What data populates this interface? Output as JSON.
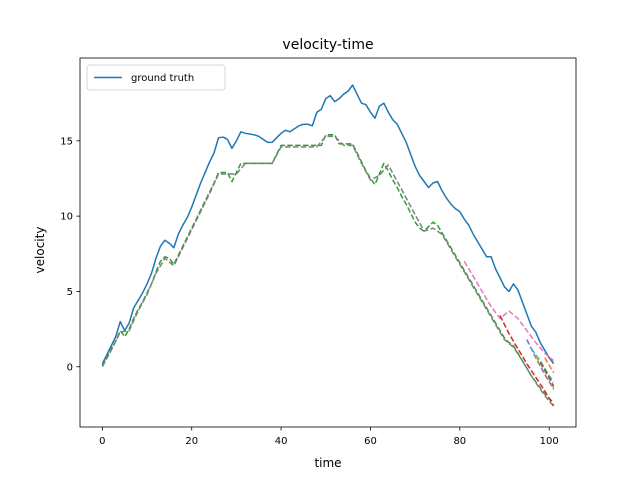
{
  "chart_data": {
    "type": "line",
    "title": "velocity-time",
    "xlabel": "time",
    "ylabel": "velocity",
    "xlim": [
      -5,
      106
    ],
    "ylim": [
      -4,
      20.5
    ],
    "xticks": [
      0,
      20,
      40,
      60,
      80,
      100
    ],
    "yticks": [
      0,
      5,
      10,
      15
    ],
    "grid": false,
    "legend": {
      "placement": "top-left",
      "entries": [
        "ground truth"
      ]
    },
    "series": [
      {
        "name": "ground truth",
        "color": "#1f77b4",
        "style": "solid",
        "x": [
          0,
          1,
          2,
          3,
          4,
          5,
          6,
          7,
          8,
          9,
          10,
          11,
          12,
          13,
          14,
          15,
          16,
          17,
          18,
          19,
          20,
          21,
          22,
          23,
          24,
          25,
          26,
          27,
          28,
          29,
          30,
          31,
          32,
          33,
          34,
          35,
          36,
          37,
          38,
          39,
          40,
          41,
          42,
          43,
          44,
          45,
          46,
          47,
          48,
          49,
          50,
          51,
          52,
          53,
          54,
          55,
          56,
          57,
          58,
          59,
          60,
          61,
          62,
          63,
          64,
          65,
          66,
          67,
          68,
          69,
          70,
          71,
          72,
          73,
          74,
          75,
          76,
          77,
          78,
          79,
          80,
          81,
          82,
          83,
          84,
          85,
          86,
          87,
          88,
          89,
          90,
          91,
          92,
          93,
          94,
          95,
          96,
          97,
          98,
          99,
          100,
          101
        ],
        "y": [
          0.2,
          0.8,
          1.4,
          2.0,
          3.0,
          2.4,
          2.9,
          3.9,
          4.4,
          4.9,
          5.5,
          6.2,
          7.2,
          8.0,
          8.4,
          8.2,
          7.9,
          8.8,
          9.4,
          9.9,
          10.6,
          11.4,
          12.2,
          12.9,
          13.6,
          14.2,
          15.2,
          15.25,
          15.1,
          14.5,
          15.0,
          15.6,
          15.5,
          15.45,
          15.4,
          15.3,
          15.1,
          14.9,
          14.9,
          15.2,
          15.5,
          15.7,
          15.6,
          15.8,
          16.0,
          16.1,
          16.1,
          16.0,
          16.9,
          17.1,
          17.8,
          18.0,
          17.6,
          17.8,
          18.1,
          18.3,
          18.7,
          18.1,
          17.5,
          17.4,
          16.9,
          16.5,
          17.3,
          17.5,
          16.9,
          16.4,
          16.1,
          15.5,
          14.9,
          14.1,
          13.3,
          12.7,
          12.3,
          11.9,
          12.2,
          12.3,
          11.7,
          11.2,
          10.8,
          10.5,
          10.3,
          9.8,
          9.4,
          8.8,
          8.3,
          7.8,
          7.3,
          7.3,
          6.5,
          5.9,
          5.3,
          5.0,
          5.5,
          5.1,
          4.3,
          3.5,
          2.7,
          2.3,
          1.6,
          1.1,
          0.6,
          0.2
        ]
      },
      {
        "color": "#2ca02c",
        "style": "dashed",
        "x": [
          0,
          1,
          2,
          3,
          4,
          5,
          6,
          7,
          8,
          9,
          10,
          11,
          12,
          13,
          14,
          15,
          16,
          17,
          18,
          19,
          20,
          21,
          22,
          23,
          24,
          25,
          26,
          27,
          28,
          29,
          30,
          31,
          32,
          33,
          34,
          35,
          36,
          37,
          38,
          39,
          40,
          41,
          42,
          43,
          44,
          45,
          46,
          47,
          48,
          49,
          50,
          51,
          52,
          53,
          54,
          55,
          56,
          57,
          58,
          59,
          60,
          61,
          62,
          63,
          64,
          65,
          66,
          67,
          68,
          69,
          70,
          71,
          72,
          73,
          74,
          75,
          76,
          77,
          78,
          79,
          80,
          81,
          82,
          83,
          84,
          85,
          86,
          87,
          88,
          89,
          90,
          91,
          92,
          93,
          94,
          95,
          96,
          97,
          98,
          99,
          100,
          101
        ],
        "y": [
          0.1,
          0.6,
          1.2,
          1.7,
          2.4,
          2.0,
          2.5,
          3.2,
          3.8,
          4.3,
          4.9,
          5.5,
          6.3,
          7.0,
          7.3,
          7.2,
          6.8,
          7.4,
          8.0,
          8.6,
          9.2,
          9.8,
          10.4,
          11.0,
          11.6,
          12.2,
          12.9,
          12.9,
          12.9,
          12.3,
          12.9,
          13.5,
          13.5,
          13.5,
          13.5,
          13.5,
          13.5,
          13.5,
          13.5,
          14.1,
          14.7,
          14.7,
          14.7,
          14.7,
          14.7,
          14.7,
          14.7,
          14.7,
          14.7,
          14.7,
          15.4,
          15.4,
          15.4,
          14.8,
          14.8,
          14.8,
          14.8,
          14.2,
          13.6,
          13.0,
          12.5,
          12.1,
          12.8,
          13.5,
          13.0,
          12.4,
          11.9,
          11.3,
          10.8,
          10.2,
          9.6,
          9.2,
          9.0,
          9.3,
          9.6,
          9.4,
          8.9,
          8.4,
          7.9,
          7.4,
          6.9,
          6.4,
          5.9,
          5.4,
          4.9,
          4.4,
          3.9,
          3.4,
          2.9,
          2.4,
          1.9,
          1.6,
          1.4,
          0.9,
          0.4,
          -0.1,
          -0.6,
          -1.0,
          -1.4,
          -1.8,
          -2.1,
          -2.4
        ]
      },
      {
        "color": "#7f7f7f",
        "style": "dashed",
        "x": [
          0,
          2,
          4,
          6,
          8,
          10,
          12,
          14,
          16,
          18,
          20,
          22,
          24,
          26,
          28,
          30,
          32,
          34,
          36,
          38,
          40,
          42,
          44,
          46,
          48,
          50,
          52,
          54,
          56,
          58,
          60,
          62,
          64,
          66,
          68,
          70,
          72,
          74,
          76,
          78,
          80,
          82,
          84,
          86,
          88,
          90,
          92,
          94,
          96,
          98,
          100,
          101
        ],
        "y": [
          0.0,
          1.1,
          2.3,
          2.4,
          3.7,
          4.8,
          6.2,
          7.2,
          6.7,
          7.9,
          9.1,
          10.3,
          11.5,
          12.8,
          12.8,
          12.8,
          13.5,
          13.5,
          13.5,
          13.5,
          14.6,
          14.6,
          14.6,
          14.6,
          14.6,
          15.3,
          15.3,
          14.7,
          14.7,
          13.5,
          12.4,
          12.7,
          13.4,
          12.3,
          11.2,
          10.1,
          9.0,
          9.2,
          8.8,
          7.8,
          6.8,
          5.8,
          4.8,
          3.8,
          2.8,
          1.8,
          1.3,
          0.4,
          -0.6,
          -1.5,
          -2.3,
          -2.6
        ]
      },
      {
        "color": "#e377c2",
        "style": "dashed",
        "x": [
          81,
          83,
          85,
          87,
          89,
          91,
          93,
          95,
          97,
          99,
          101
        ],
        "y": [
          7.0,
          6.0,
          5.0,
          4.0,
          3.2,
          3.7,
          3.2,
          2.4,
          1.6,
          0.9,
          0.4
        ]
      },
      {
        "color": "#d62728",
        "style": "dashed",
        "x": [
          89,
          91,
          93,
          95,
          97,
          99,
          101
        ],
        "y": [
          3.4,
          2.2,
          1.2,
          0.2,
          -0.7,
          -1.6,
          -2.6
        ]
      },
      {
        "color": "#9467bd",
        "style": "dashed",
        "x": [
          95,
          97,
          99,
          101
        ],
        "y": [
          1.8,
          0.6,
          -0.5,
          -1.5
        ]
      },
      {
        "color": "#17becf",
        "style": "dashed",
        "x": [
          96,
          98,
          100,
          101
        ],
        "y": [
          1.2,
          0.4,
          -0.6,
          -1.0
        ]
      },
      {
        "color": "#bcbd22",
        "style": "dashed",
        "x": [
          97,
          99,
          101
        ],
        "y": [
          0.7,
          -0.3,
          -1.4
        ]
      },
      {
        "color": "#8c564b",
        "style": "dashed",
        "x": [
          98,
          100,
          101
        ],
        "y": [
          0.3,
          -0.7,
          -1.3
        ]
      },
      {
        "color": "#ff7f0e",
        "style": "dashed",
        "x": [
          99,
          100,
          101
        ],
        "y": [
          0.6,
          0.1,
          -0.4
        ]
      }
    ]
  }
}
